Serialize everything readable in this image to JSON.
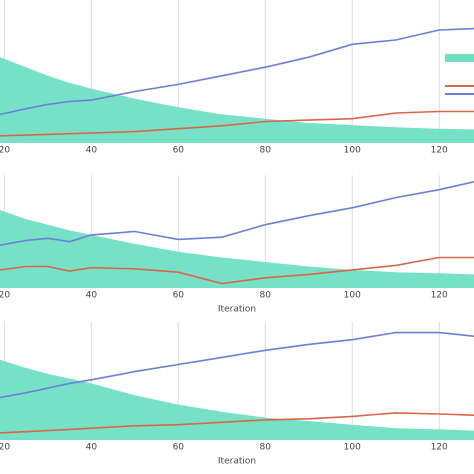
{
  "chart_data": [
    {
      "type": "line",
      "xlim": [
        19,
        128
      ],
      "ylim": [
        0,
        1
      ],
      "xticks": [
        20,
        40,
        60,
        80,
        100,
        120
      ],
      "grid": true,
      "legend": "right",
      "x": [
        19,
        25,
        30,
        35,
        40,
        50,
        60,
        70,
        80,
        90,
        100,
        110,
        120,
        128
      ],
      "series": [
        {
          "type": "area",
          "color": "#6fdfc3",
          "values": [
            0.6,
            0.53,
            0.47,
            0.42,
            0.38,
            0.31,
            0.25,
            0.2,
            0.17,
            0.14,
            0.125,
            0.11,
            0.1,
            0.095
          ]
        },
        {
          "type": "line",
          "color": "#d9664a",
          "values": [
            0.05,
            0.055,
            0.06,
            0.065,
            0.07,
            0.08,
            0.1,
            0.12,
            0.15,
            0.16,
            0.17,
            0.21,
            0.22,
            0.22
          ]
        },
        {
          "type": "line",
          "color": "#6b7fd7",
          "values": [
            0.2,
            0.24,
            0.27,
            0.29,
            0.3,
            0.36,
            0.41,
            0.47,
            0.53,
            0.6,
            0.69,
            0.72,
            0.79,
            0.8
          ]
        }
      ]
    },
    {
      "type": "line",
      "xlim": [
        19,
        128
      ],
      "ylim": [
        0,
        1
      ],
      "xticks": [
        20,
        40,
        60,
        80,
        100,
        120
      ],
      "grid": true,
      "xlabel": "Iteration",
      "x": [
        19,
        25,
        30,
        35,
        40,
        50,
        60,
        70,
        80,
        90,
        100,
        110,
        120,
        128
      ],
      "series": [
        {
          "type": "area",
          "color": "#6fdfc3",
          "values": [
            0.69,
            0.61,
            0.56,
            0.51,
            0.47,
            0.39,
            0.32,
            0.27,
            0.23,
            0.19,
            0.16,
            0.14,
            0.13,
            0.12
          ]
        },
        {
          "type": "line",
          "color": "#d9664a",
          "values": [
            0.16,
            0.19,
            0.19,
            0.15,
            0.18,
            0.17,
            0.14,
            0.04,
            0.09,
            0.12,
            0.16,
            0.2,
            0.27,
            0.27
          ]
        },
        {
          "type": "line",
          "color": "#6b7fd7",
          "values": [
            0.38,
            0.42,
            0.44,
            0.41,
            0.47,
            0.5,
            0.43,
            0.45,
            0.56,
            0.64,
            0.71,
            0.8,
            0.87,
            0.94
          ]
        }
      ]
    },
    {
      "type": "line",
      "xlim": [
        19,
        128
      ],
      "ylim": [
        0,
        1
      ],
      "xticks": [
        20,
        40,
        60,
        80,
        100,
        120
      ],
      "grid": true,
      "xlabel": "Iteration",
      "x": [
        19,
        25,
        30,
        35,
        40,
        50,
        60,
        70,
        80,
        90,
        100,
        110,
        120,
        128
      ],
      "series": [
        {
          "type": "area",
          "color": "#6fdfc3",
          "values": [
            0.68,
            0.61,
            0.56,
            0.52,
            0.48,
            0.38,
            0.3,
            0.24,
            0.19,
            0.16,
            0.13,
            0.1,
            0.09,
            0.08
          ]
        },
        {
          "type": "line",
          "color": "#d9664a",
          "values": [
            0.06,
            0.07,
            0.08,
            0.09,
            0.1,
            0.12,
            0.13,
            0.15,
            0.17,
            0.18,
            0.2,
            0.23,
            0.22,
            0.21
          ]
        },
        {
          "type": "line",
          "color": "#6b7fd7",
          "values": [
            0.36,
            0.4,
            0.44,
            0.48,
            0.51,
            0.58,
            0.64,
            0.7,
            0.76,
            0.81,
            0.85,
            0.91,
            0.91,
            0.88
          ]
        }
      ]
    }
  ]
}
